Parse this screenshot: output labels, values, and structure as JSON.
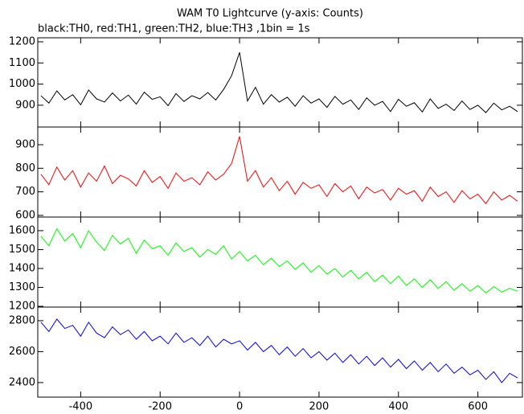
{
  "chart_data": [
    {
      "type": "line",
      "title": "WAM T0 Lightcurve (y-axis: Counts)",
      "subtitle": "black:TH0, red:TH1, green:TH2, blue:TH3 ,1bin = 1s",
      "color": "#000000",
      "x": [
        -500,
        -480,
        -460,
        -440,
        -420,
        -400,
        -380,
        -360,
        -340,
        -320,
        -300,
        -280,
        -260,
        -240,
        -220,
        -200,
        -180,
        -160,
        -140,
        -120,
        -100,
        -80,
        -60,
        -40,
        -20,
        0,
        20,
        40,
        60,
        80,
        100,
        120,
        140,
        160,
        180,
        200,
        220,
        240,
        260,
        280,
        300,
        320,
        340,
        360,
        380,
        400,
        420,
        440,
        460,
        480,
        500,
        520,
        540,
        560,
        580,
        600,
        620,
        640,
        660,
        680,
        700
      ],
      "values": [
        945,
        910,
        968,
        925,
        950,
        902,
        972,
        930,
        915,
        958,
        920,
        948,
        905,
        962,
        928,
        940,
        898,
        955,
        918,
        945,
        930,
        960,
        925,
        975,
        1040,
        1150,
        920,
        985,
        905,
        950,
        915,
        938,
        895,
        945,
        910,
        930,
        890,
        942,
        905,
        925,
        880,
        935,
        900,
        918,
        870,
        928,
        895,
        912,
        868,
        930,
        885,
        905,
        875,
        920,
        880,
        900,
        865,
        910,
        878,
        895,
        870
      ],
      "xlim": [
        -508,
        712
      ],
      "ylim": [
        797,
        1219
      ],
      "yticks": [
        900,
        1000,
        1100,
        1200
      ]
    },
    {
      "type": "line",
      "color": "#ff0000",
      "x": [
        -500,
        -480,
        -460,
        -440,
        -420,
        -400,
        -380,
        -360,
        -340,
        -320,
        -300,
        -280,
        -260,
        -240,
        -220,
        -200,
        -180,
        -160,
        -140,
        -120,
        -100,
        -80,
        -60,
        -40,
        -20,
        0,
        20,
        40,
        60,
        80,
        100,
        120,
        140,
        160,
        180,
        200,
        220,
        240,
        260,
        280,
        300,
        320,
        340,
        360,
        380,
        400,
        420,
        440,
        460,
        480,
        500,
        520,
        540,
        560,
        580,
        600,
        620,
        640,
        660,
        680,
        700
      ],
      "values": [
        775,
        730,
        805,
        750,
        790,
        720,
        780,
        745,
        810,
        735,
        770,
        755,
        725,
        790,
        740,
        765,
        715,
        780,
        745,
        760,
        730,
        785,
        750,
        775,
        820,
        935,
        745,
        790,
        720,
        760,
        705,
        745,
        690,
        740,
        715,
        730,
        680,
        735,
        700,
        725,
        670,
        720,
        695,
        710,
        665,
        715,
        690,
        705,
        660,
        720,
        680,
        700,
        655,
        705,
        670,
        690,
        650,
        700,
        665,
        685,
        660
      ],
      "xlim": [
        -508,
        712
      ],
      "ylim": [
        593,
        975
      ],
      "yticks": [
        600,
        700,
        800,
        900
      ]
    },
    {
      "type": "line",
      "color": "#00ff00",
      "x": [
        -500,
        -480,
        -460,
        -440,
        -420,
        -400,
        -380,
        -360,
        -340,
        -320,
        -300,
        -280,
        -260,
        -240,
        -220,
        -200,
        -180,
        -160,
        -140,
        -120,
        -100,
        -80,
        -60,
        -40,
        -20,
        0,
        20,
        40,
        60,
        80,
        100,
        120,
        140,
        160,
        180,
        200,
        220,
        240,
        260,
        280,
        300,
        320,
        340,
        360,
        380,
        400,
        420,
        440,
        460,
        480,
        500,
        520,
        540,
        560,
        580,
        600,
        620,
        640,
        660,
        680,
        700
      ],
      "values": [
        1570,
        1520,
        1610,
        1545,
        1585,
        1510,
        1600,
        1540,
        1495,
        1575,
        1530,
        1560,
        1480,
        1550,
        1505,
        1520,
        1470,
        1535,
        1490,
        1510,
        1460,
        1500,
        1475,
        1520,
        1450,
        1490,
        1440,
        1470,
        1420,
        1455,
        1410,
        1440,
        1395,
        1430,
        1380,
        1415,
        1370,
        1400,
        1355,
        1390,
        1345,
        1380,
        1330,
        1365,
        1320,
        1360,
        1310,
        1345,
        1300,
        1340,
        1295,
        1330,
        1285,
        1320,
        1280,
        1310,
        1270,
        1305,
        1275,
        1295,
        1280
      ],
      "xlim": [
        -508,
        712
      ],
      "ylim": [
        1196,
        1672
      ],
      "yticks": [
        1200,
        1300,
        1400,
        1500,
        1600
      ]
    },
    {
      "type": "line",
      "color": "#0000ff",
      "x": [
        -500,
        -480,
        -460,
        -440,
        -420,
        -400,
        -380,
        -360,
        -340,
        -320,
        -300,
        -280,
        -260,
        -240,
        -220,
        -200,
        -180,
        -160,
        -140,
        -120,
        -100,
        -80,
        -60,
        -40,
        -20,
        0,
        20,
        40,
        60,
        80,
        100,
        120,
        140,
        160,
        180,
        200,
        220,
        240,
        260,
        280,
        300,
        320,
        340,
        360,
        380,
        400,
        420,
        440,
        460,
        480,
        500,
        520,
        540,
        560,
        580,
        600,
        620,
        640,
        660,
        680,
        700
      ],
      "values": [
        2790,
        2730,
        2810,
        2750,
        2770,
        2700,
        2790,
        2720,
        2690,
        2760,
        2710,
        2740,
        2680,
        2730,
        2670,
        2700,
        2650,
        2720,
        2660,
        2690,
        2640,
        2700,
        2630,
        2680,
        2650,
        2670,
        2610,
        2660,
        2600,
        2640,
        2580,
        2630,
        2570,
        2620,
        2560,
        2600,
        2545,
        2590,
        2530,
        2580,
        2520,
        2570,
        2510,
        2560,
        2500,
        2550,
        2490,
        2540,
        2480,
        2530,
        2470,
        2520,
        2460,
        2500,
        2450,
        2480,
        2420,
        2470,
        2400,
        2460,
        2430
      ],
      "xlim": [
        -508,
        712
      ],
      "ylim": [
        2306,
        2888
      ],
      "yticks": [
        2400,
        2600,
        2800
      ],
      "xticks": [
        -400,
        -200,
        0,
        200,
        400,
        600
      ]
    }
  ]
}
